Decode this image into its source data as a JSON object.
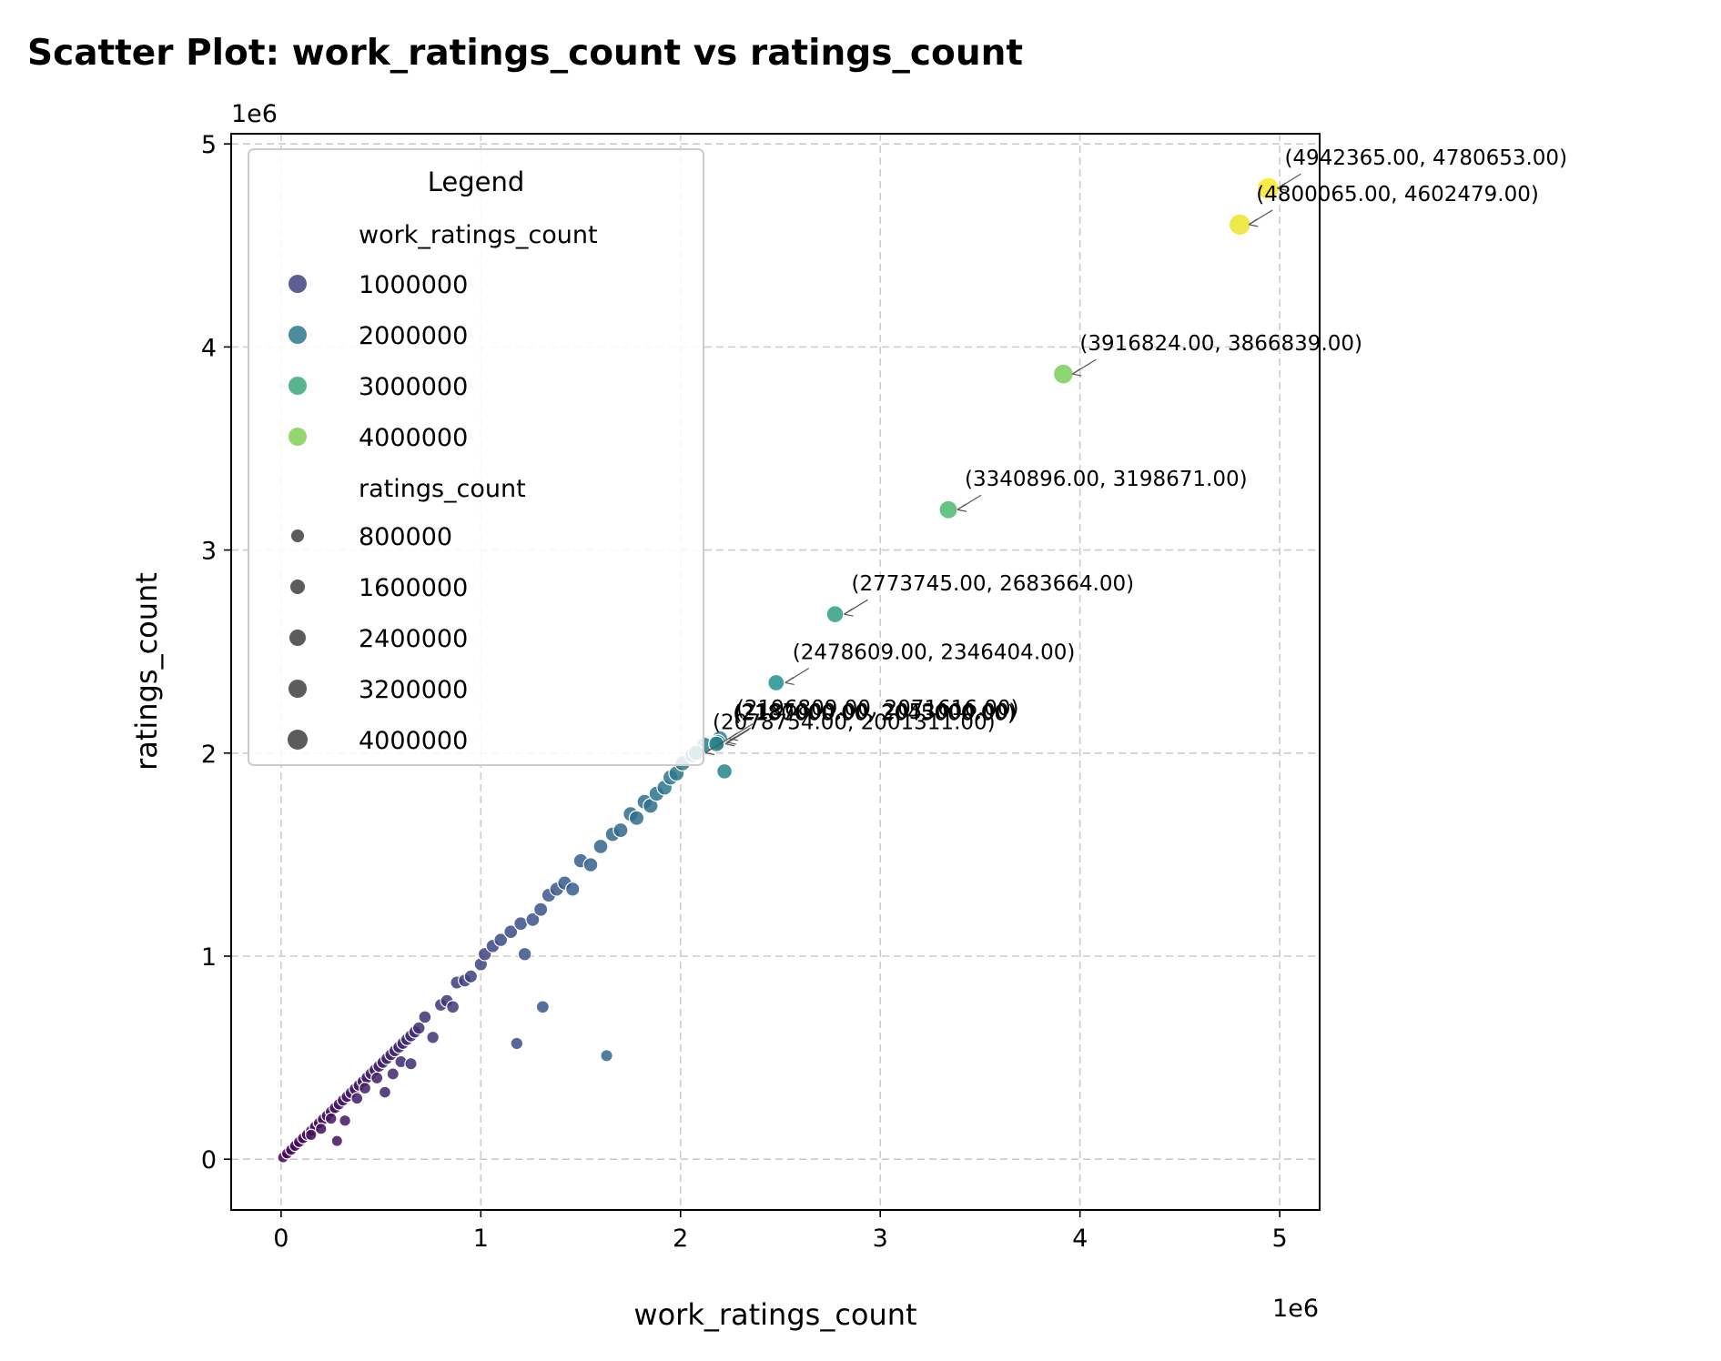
{
  "chart_data": {
    "type": "scatter",
    "title": "Scatter Plot: work_ratings_count vs ratings_count",
    "xlabel": "work_ratings_count",
    "ylabel": "ratings_count",
    "x_offset_label": "1e6",
    "y_offset_label": "1e6",
    "xlim": [
      -250000,
      5200000
    ],
    "ylim": [
      -250000,
      5050000
    ],
    "xticks": [
      0,
      1000000,
      2000000,
      3000000,
      4000000,
      5000000
    ],
    "xtick_labels": [
      "0",
      "1",
      "2",
      "3",
      "4",
      "5"
    ],
    "yticks": [
      0,
      1000000,
      2000000,
      3000000,
      4000000,
      5000000
    ],
    "ytick_labels": [
      "0",
      "1",
      "2",
      "3",
      "4",
      "5"
    ],
    "grid": true,
    "legend_position": "upper-left",
    "colormap": "viridis",
    "color_range": [
      0,
      4942365
    ],
    "size_range": [
      0,
      4780653
    ],
    "legend": {
      "title": "Legend",
      "hue_title": "work_ratings_count",
      "hue_entries": [
        "1000000",
        "2000000",
        "3000000",
        "4000000"
      ],
      "hue_values": [
        1000000,
        2000000,
        3000000,
        4000000
      ],
      "size_title": "ratings_count",
      "size_entries": [
        "800000",
        "1600000",
        "2400000",
        "3200000",
        "4000000"
      ],
      "size_values": [
        800000,
        1600000,
        2400000,
        3200000,
        4000000
      ]
    },
    "annotations": [
      {
        "x": 4942365,
        "y": 4780653,
        "label": "(4942365.00, 4780653.00)"
      },
      {
        "x": 4800065,
        "y": 4602479,
        "label": "(4800065.00, 4602479.00)"
      },
      {
        "x": 3916824,
        "y": 3866839,
        "label": "(3916824.00, 3866839.00)"
      },
      {
        "x": 3340896,
        "y": 3198671,
        "label": "(3340896.00, 3198671.00)"
      },
      {
        "x": 2773745,
        "y": 2683664,
        "label": "(2773745.00, 2683664.00)"
      },
      {
        "x": 2478609,
        "y": 2346404,
        "label": "(2478609.00, 2346404.00)"
      },
      {
        "x": 2196809,
        "y": 2071616,
        "label": "(2196809.00, 2071616.00)"
      },
      {
        "x": 2187000,
        "y": 2053000,
        "label": "(2187000.00, 2053000.00)"
      },
      {
        "x": 2180000,
        "y": 2045000,
        "label": "(2180000.00, 2045000.00)"
      },
      {
        "x": 2078754,
        "y": 2001311,
        "label": "(2078754.00, 2001311.00)"
      }
    ],
    "points": [
      [
        10000,
        9000
      ],
      [
        30000,
        28000
      ],
      [
        50000,
        46000
      ],
      [
        70000,
        66000
      ],
      [
        90000,
        85000
      ],
      [
        110000,
        104000
      ],
      [
        130000,
        121000
      ],
      [
        150000,
        140000
      ],
      [
        170000,
        160000
      ],
      [
        190000,
        178000
      ],
      [
        210000,
        197000
      ],
      [
        230000,
        214000
      ],
      [
        250000,
        234000
      ],
      [
        270000,
        253000
      ],
      [
        290000,
        271000
      ],
      [
        310000,
        290000
      ],
      [
        330000,
        308000
      ],
      [
        350000,
        327000
      ],
      [
        370000,
        346000
      ],
      [
        390000,
        364000
      ],
      [
        410000,
        383000
      ],
      [
        430000,
        402000
      ],
      [
        450000,
        421000
      ],
      [
        470000,
        440000
      ],
      [
        490000,
        458000
      ],
      [
        510000,
        477000
      ],
      [
        530000,
        496000
      ],
      [
        550000,
        515000
      ],
      [
        570000,
        534000
      ],
      [
        590000,
        552000
      ],
      [
        610000,
        571000
      ],
      [
        630000,
        590000
      ],
      [
        650000,
        608000
      ],
      [
        670000,
        627000
      ],
      [
        690000,
        646000
      ],
      [
        150000,
        120000
      ],
      [
        200000,
        150000
      ],
      [
        250000,
        200000
      ],
      [
        280000,
        90000
      ],
      [
        320000,
        190000
      ],
      [
        380000,
        300000
      ],
      [
        420000,
        350000
      ],
      [
        480000,
        400000
      ],
      [
        520000,
        330000
      ],
      [
        560000,
        420000
      ],
      [
        600000,
        480000
      ],
      [
        650000,
        470000
      ],
      [
        720000,
        700000
      ],
      [
        760000,
        600000
      ],
      [
        800000,
        760000
      ],
      [
        830000,
        780000
      ],
      [
        860000,
        750000
      ],
      [
        880000,
        870000
      ],
      [
        920000,
        880000
      ],
      [
        950000,
        900000
      ],
      [
        1000000,
        960000
      ],
      [
        1020000,
        1010000
      ],
      [
        1060000,
        1050000
      ],
      [
        1100000,
        1080000
      ],
      [
        1150000,
        1120000
      ],
      [
        1180000,
        570000
      ],
      [
        1200000,
        1160000
      ],
      [
        1220000,
        1010000
      ],
      [
        1260000,
        1180000
      ],
      [
        1300000,
        1230000
      ],
      [
        1310000,
        750000
      ],
      [
        1340000,
        1300000
      ],
      [
        1380000,
        1330000
      ],
      [
        1420000,
        1360000
      ],
      [
        1460000,
        1330000
      ],
      [
        1500000,
        1470000
      ],
      [
        1550000,
        1450000
      ],
      [
        1600000,
        1540000
      ],
      [
        1630000,
        510000
      ],
      [
        1660000,
        1600000
      ],
      [
        1700000,
        1620000
      ],
      [
        1750000,
        1700000
      ],
      [
        1780000,
        1680000
      ],
      [
        1820000,
        1760000
      ],
      [
        1850000,
        1740000
      ],
      [
        1880000,
        1800000
      ],
      [
        1920000,
        1830000
      ],
      [
        1950000,
        1880000
      ],
      [
        1980000,
        1900000
      ],
      [
        2010000,
        1950000
      ],
      [
        2060000,
        1990000
      ],
      [
        2120000,
        2040000
      ],
      [
        2220000,
        1910000
      ]
    ]
  }
}
